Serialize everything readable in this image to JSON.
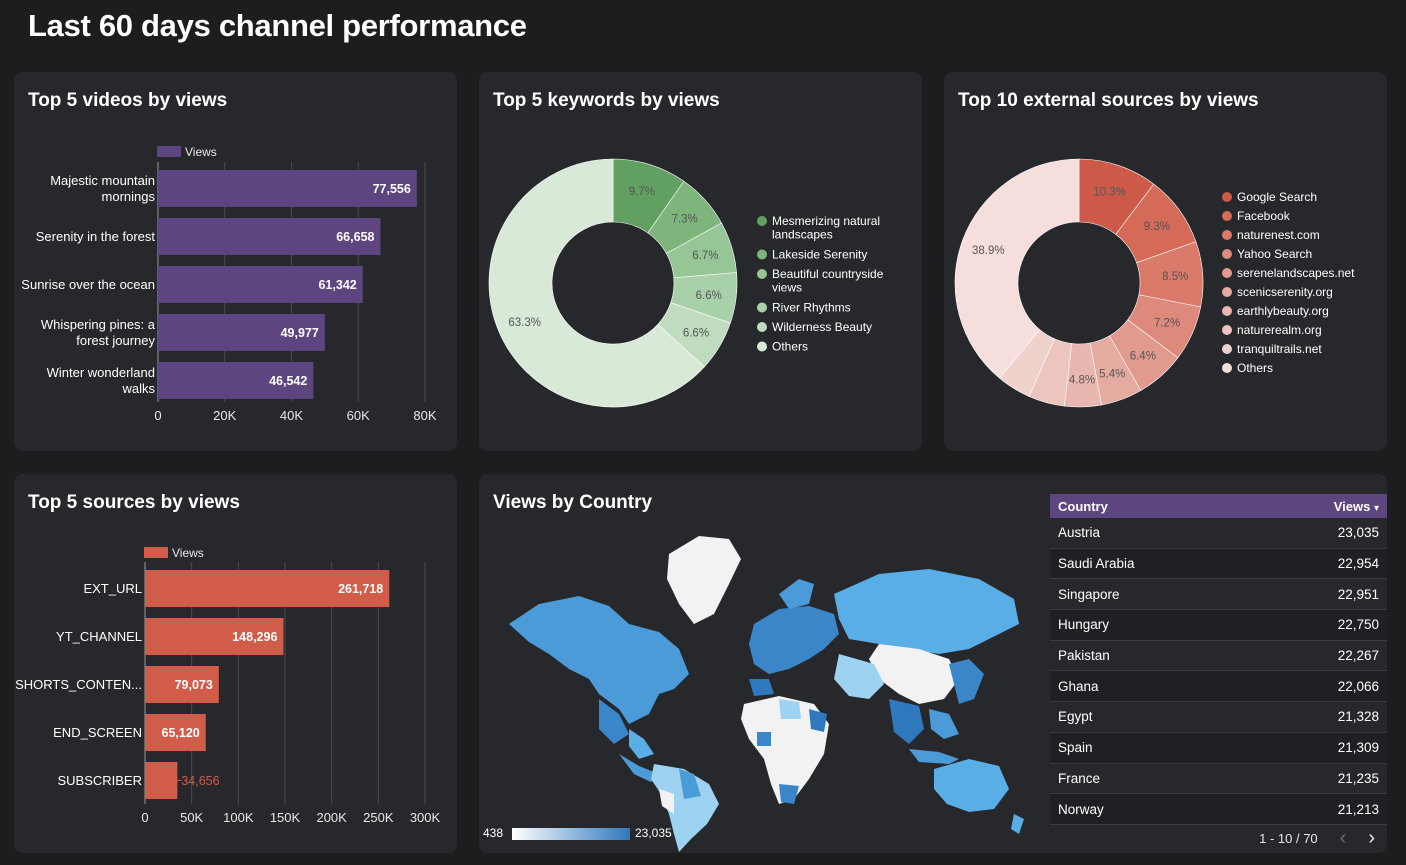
{
  "page": {
    "title": "Last 60 days channel performance"
  },
  "videos_card": {
    "title": "Top 5 videos by views",
    "legend": "Views",
    "color": "#5d4680",
    "items": [
      {
        "label_lines": [
          "Majestic mountain",
          "mornings"
        ],
        "value": 77556,
        "value_label": "77,556"
      },
      {
        "label_lines": [
          "Serenity in the forest"
        ],
        "value": 66658,
        "value_label": "66,658"
      },
      {
        "label_lines": [
          "Sunrise over the ocean"
        ],
        "value": 61342,
        "value_label": "61,342"
      },
      {
        "label_lines": [
          "Whispering pines: a",
          "forest journey"
        ],
        "value": 49977,
        "value_label": "49,977"
      },
      {
        "label_lines": [
          "Winter wonderland",
          "walks"
        ],
        "value": 46542,
        "value_label": "46,542"
      }
    ],
    "ticks": [
      "0",
      "20K",
      "40K",
      "60K",
      "80K"
    ],
    "max": 80000
  },
  "keywords_card": {
    "title": "Top 5 keywords by views",
    "slices": [
      {
        "name": "Mesmerizing natural landscapes",
        "legend_lines": [
          "Mesmerizing natural",
          "landscapes"
        ],
        "pct": 9.7,
        "label": "9.7%",
        "color": "#62a062"
      },
      {
        "name": "Lakeside Serenity",
        "legend_lines": [
          "Lakeside Serenity"
        ],
        "pct": 7.3,
        "label": "7.3%",
        "color": "#7db57d"
      },
      {
        "name": "Beautiful countryside views",
        "legend_lines": [
          "Beautiful countryside",
          "views"
        ],
        "pct": 6.7,
        "label": "6.7%",
        "color": "#96c596"
      },
      {
        "name": "River Rhythms",
        "legend_lines": [
          "River Rhythms"
        ],
        "pct": 6.6,
        "label": "6.6%",
        "color": "#a9d1a9"
      },
      {
        "name": "Wilderness Beauty",
        "legend_lines": [
          "Wilderness Beauty"
        ],
        "pct": 6.6,
        "label": "6.6%",
        "color": "#bfdcbf"
      },
      {
        "name": "Others",
        "legend_lines": [
          "Others"
        ],
        "pct": 63.3,
        "label": "63.3%",
        "color": "#d8e9d8"
      }
    ]
  },
  "external_card": {
    "title": "Top 10 external sources by views",
    "slices": [
      {
        "name": "Google Search",
        "pct": 10.3,
        "label": "10.3%",
        "color": "#cd5a48"
      },
      {
        "name": "Facebook",
        "pct": 9.3,
        "label": "9.3%",
        "color": "#d56a58"
      },
      {
        "name": "naturenest.com",
        "pct": 8.5,
        "label": "8.5%",
        "color": "#d97a6a"
      },
      {
        "name": "Yahoo Search",
        "pct": 7.2,
        "label": "7.2%",
        "color": "#dd8a7c"
      },
      {
        "name": "serenelandscapes.net",
        "pct": 6.4,
        "label": "6.4%",
        "color": "#e19a8e"
      },
      {
        "name": "scenicserenity.org",
        "pct": 5.4,
        "label": "5.4%",
        "color": "#e5aaa0"
      },
      {
        "name": "earthlybeauty.org",
        "pct": 4.8,
        "label": "4.8%",
        "color": "#e8b8b0"
      },
      {
        "name": "naturerealm.org",
        "pct": 4.7,
        "label": "",
        "color": "#ecc5bf"
      },
      {
        "name": "tranquiltrails.net",
        "pct": 4.5,
        "label": "",
        "color": "#f0d2cd"
      },
      {
        "name": "Others",
        "pct": 38.9,
        "label": "38.9%",
        "color": "#f5dedb"
      }
    ]
  },
  "sources_card": {
    "title": "Top 5 sources by views",
    "legend": "Views",
    "color": "#d25c4a",
    "items": [
      {
        "label": "EXT_URL",
        "value": 261718,
        "value_label": "261,718"
      },
      {
        "label": "YT_CHANNEL",
        "value": 148296,
        "value_label": "148,296"
      },
      {
        "label": "SHORTS_CONTEN...",
        "value": 79073,
        "value_label": "79,073"
      },
      {
        "label": "END_SCREEN",
        "value": 65120,
        "value_label": "65,120"
      },
      {
        "label": "SUBSCRIBER",
        "value": 34656,
        "value_label": "34,656"
      }
    ],
    "ticks": [
      "0",
      "50K",
      "100K",
      "150K",
      "200K",
      "250K",
      "300K"
    ],
    "max": 300000
  },
  "country_card": {
    "title": "Views by Country",
    "scale_min": "438",
    "scale_max": "23,035",
    "table": {
      "col_country": "Country",
      "col_views": "Views",
      "sort_indicator": "▾",
      "rows": [
        {
          "country": "Austria",
          "views": "23,035"
        },
        {
          "country": "Saudi Arabia",
          "views": "22,954"
        },
        {
          "country": "Singapore",
          "views": "22,951"
        },
        {
          "country": "Hungary",
          "views": "22,750"
        },
        {
          "country": "Pakistan",
          "views": "22,267"
        },
        {
          "country": "Ghana",
          "views": "22,066"
        },
        {
          "country": "Egypt",
          "views": "21,328"
        },
        {
          "country": "Spain",
          "views": "21,309"
        },
        {
          "country": "France",
          "views": "21,235"
        },
        {
          "country": "Norway",
          "views": "21,213"
        }
      ],
      "pager": "1 - 10 / 70",
      "prev_icon": "‹",
      "next_icon": "›"
    }
  }
}
